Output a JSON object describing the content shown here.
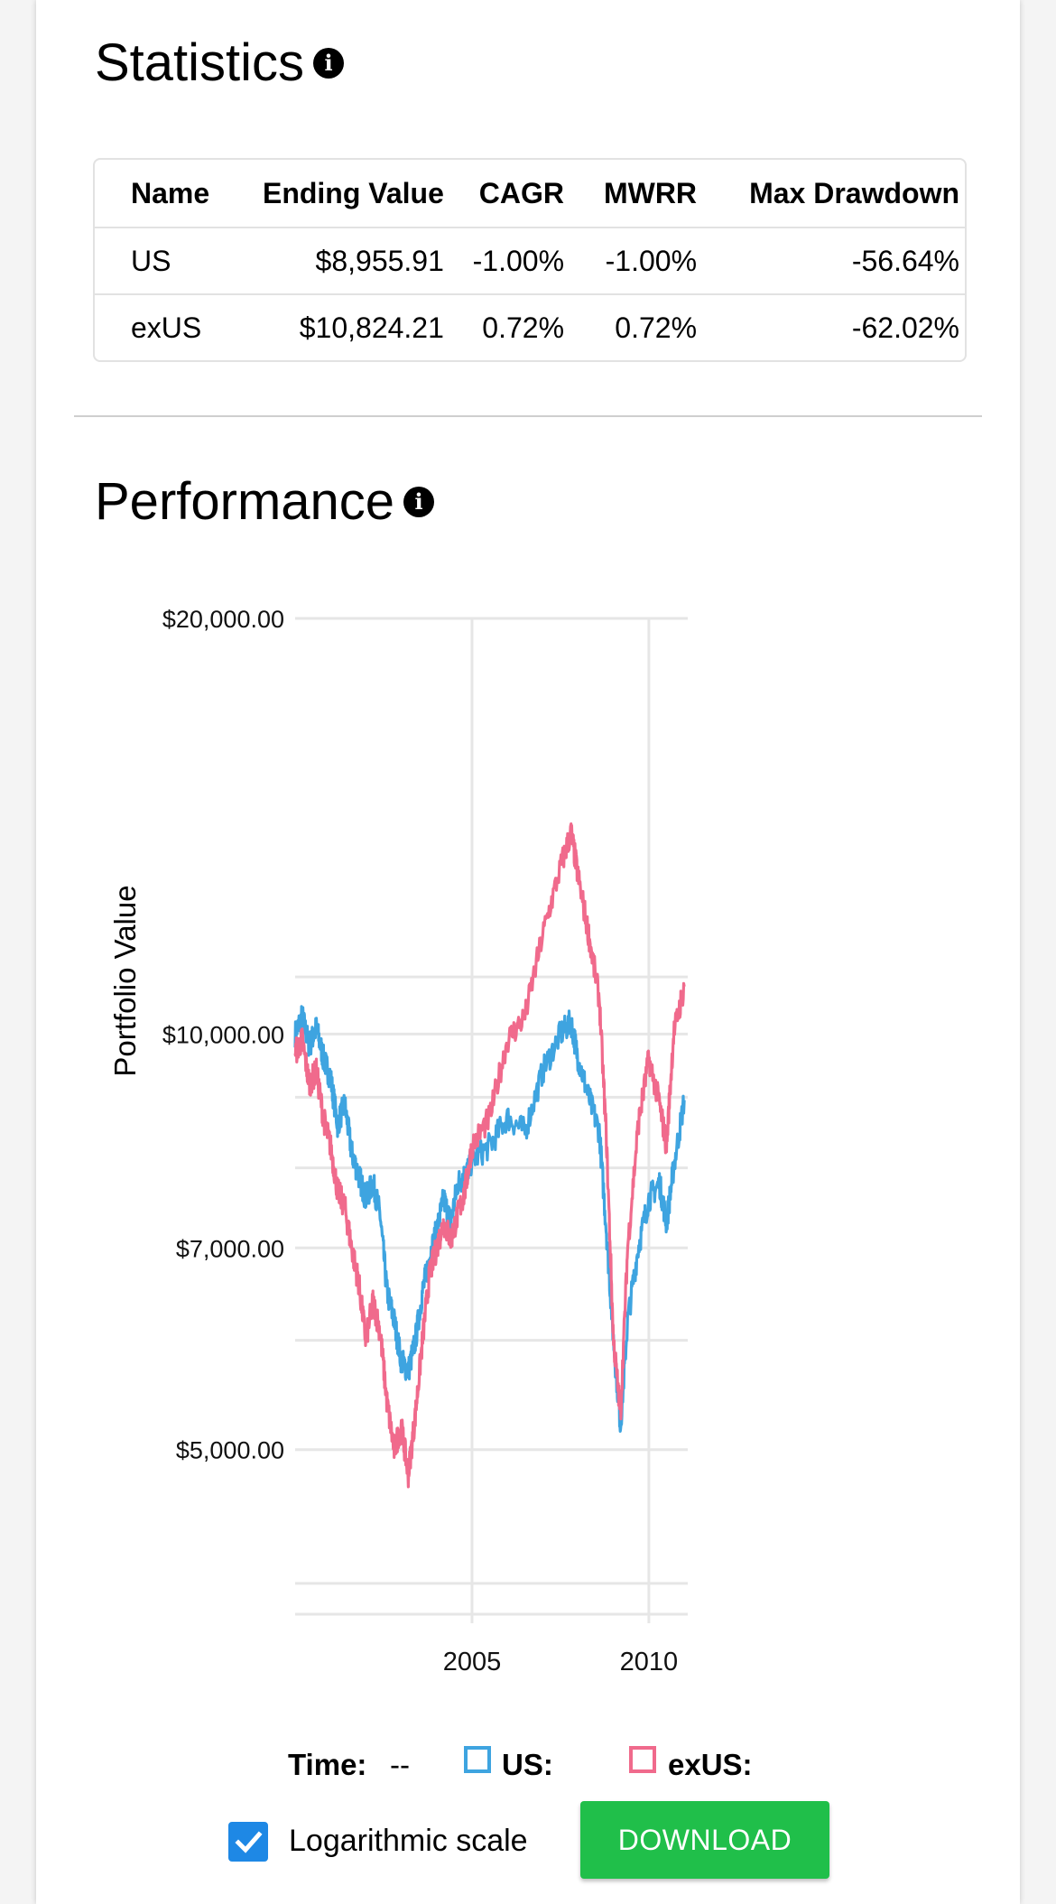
{
  "statistics": {
    "title": "Statistics",
    "info_icon": "info-icon",
    "columns": [
      "Name",
      "Ending Value",
      "CAGR",
      "MWRR",
      "Max Drawdown"
    ],
    "rows": [
      {
        "name": "US",
        "ending_value": "$8,955.91",
        "cagr": "-1.00%",
        "mwrr": "-1.00%",
        "max_drawdown": "-56.64%"
      },
      {
        "name": "exUS",
        "ending_value": "$10,824.21",
        "cagr": "0.72%",
        "mwrr": "0.72%",
        "max_drawdown": "-62.02%"
      }
    ]
  },
  "performance": {
    "title": "Performance",
    "info_icon": "info-icon"
  },
  "chart_data": {
    "type": "line",
    "ylabel": "Portfolio Value",
    "xlabel": "",
    "y_scale": "log",
    "ylim": [
      3800,
      20000
    ],
    "xlim": [
      2000.0,
      2011.1
    ],
    "y_ticks": [
      {
        "value": 20000,
        "label": "$20,000.00"
      },
      {
        "value": 10000,
        "label": "$10,000.00"
      },
      {
        "value": 7000,
        "label": "$7,000.00"
      },
      {
        "value": 5000,
        "label": "$5,000.00"
      }
    ],
    "y_gridlines_unlabeled": [
      11000,
      9000,
      8000,
      6000,
      4000
    ],
    "x_ticks": [
      {
        "value": 2005,
        "label": "2005"
      },
      {
        "value": 2010,
        "label": "2010"
      }
    ],
    "grid": true,
    "colors": {
      "US": "#3ea4e0",
      "exUS": "#f06a8c"
    },
    "series": [
      {
        "name": "US",
        "x": [
          2000.0,
          2000.2,
          2000.4,
          2000.6,
          2000.8,
          2001.0,
          2001.2,
          2001.4,
          2001.6,
          2001.8,
          2002.0,
          2002.2,
          2002.4,
          2002.6,
          2002.8,
          2003.0,
          2003.2,
          2003.4,
          2003.6,
          2003.8,
          2004.0,
          2004.2,
          2004.4,
          2004.6,
          2004.8,
          2005.0,
          2005.5,
          2006.0,
          2006.5,
          2007.0,
          2007.5,
          2007.8,
          2008.0,
          2008.3,
          2008.6,
          2008.8,
          2009.0,
          2009.2,
          2009.4,
          2009.7,
          2010.0,
          2010.3,
          2010.5,
          2010.7,
          2011.0
        ],
        "values": [
          10000,
          10300,
          9800,
          10100,
          9600,
          9300,
          8600,
          8900,
          8200,
          7900,
          7600,
          7800,
          7400,
          6500,
          6200,
          5800,
          5700,
          6000,
          6500,
          6900,
          7200,
          7600,
          7300,
          7800,
          7900,
          8100,
          8300,
          8700,
          8500,
          9400,
          10000,
          10200,
          9600,
          9000,
          8500,
          7200,
          6000,
          5200,
          6200,
          7000,
          7600,
          7800,
          7300,
          8000,
          8956
        ]
      },
      {
        "name": "exUS",
        "x": [
          2000.0,
          2000.2,
          2000.4,
          2000.6,
          2000.8,
          2001.0,
          2001.2,
          2001.4,
          2001.6,
          2001.8,
          2002.0,
          2002.2,
          2002.4,
          2002.6,
          2002.8,
          2003.0,
          2003.2,
          2003.4,
          2003.6,
          2003.8,
          2004.0,
          2004.2,
          2004.4,
          2004.6,
          2004.8,
          2005.0,
          2005.5,
          2006.0,
          2006.5,
          2007.0,
          2007.5,
          2007.8,
          2008.0,
          2008.3,
          2008.6,
          2008.8,
          2009.0,
          2009.2,
          2009.4,
          2009.7,
          2010.0,
          2010.3,
          2010.5,
          2010.7,
          2011.0
        ],
        "values": [
          9700,
          9900,
          9200,
          9400,
          8700,
          8300,
          7700,
          7500,
          7000,
          6600,
          6000,
          6400,
          6100,
          5400,
          5000,
          5200,
          4800,
          5300,
          6000,
          6700,
          7000,
          7300,
          7100,
          7400,
          7700,
          8300,
          8700,
          9900,
          10300,
          11800,
          13200,
          14000,
          13000,
          11800,
          10600,
          8400,
          6000,
          5300,
          7000,
          8600,
          9600,
          8900,
          8300,
          10000,
          10824
        ]
      }
    ]
  },
  "legend": {
    "time_label": "Time:",
    "time_value": "--",
    "us_label": "US:",
    "exus_label": "exUS:"
  },
  "controls": {
    "log_scale_label": "Logarithmic scale",
    "log_scale_checked": true,
    "download_label": "DOWNLOAD"
  }
}
